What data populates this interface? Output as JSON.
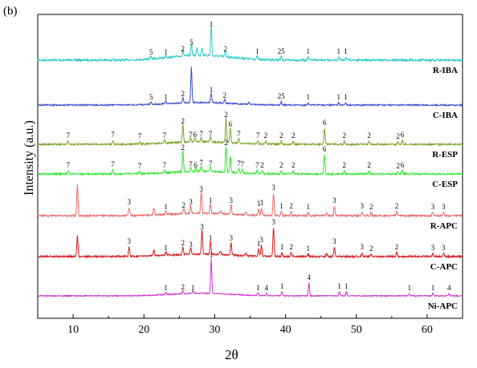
{
  "chart_data": {
    "type": "line",
    "panel_label": "(b)",
    "xlabel": "2θ",
    "ylabel": "Intensity (a.u.)",
    "xlim": [
      5,
      65
    ],
    "xticks": [
      10,
      20,
      30,
      40,
      50,
      60
    ],
    "series": [
      {
        "name": "R-IBA",
        "color": "#2ec9c9",
        "baseline": 75,
        "noise": 1.8,
        "peaks": [
          [
            21,
            3,
            "5"
          ],
          [
            23.1,
            3,
            "1"
          ],
          [
            25.5,
            7,
            "2"
          ],
          [
            26.7,
            15,
            "5"
          ],
          [
            27.5,
            9,
            ""
          ],
          [
            28.2,
            9,
            ""
          ],
          [
            29.5,
            38,
            "1"
          ],
          [
            31.5,
            7,
            "2"
          ],
          [
            36,
            4,
            "1"
          ],
          [
            39.4,
            4,
            "25"
          ],
          [
            43.2,
            4,
            "1"
          ],
          [
            47.5,
            4,
            "1"
          ],
          [
            48.5,
            4,
            "1"
          ]
        ]
      },
      {
        "name": "C-IBA",
        "color": "#3b4fcf",
        "baseline": 131,
        "noise": 1.2,
        "peaks": [
          [
            21,
            3,
            "5"
          ],
          [
            23.1,
            3,
            "1"
          ],
          [
            25.5,
            7,
            "2"
          ],
          [
            26.7,
            44,
            ""
          ],
          [
            29.5,
            12,
            "1"
          ],
          [
            31.4,
            5,
            "2"
          ],
          [
            34.8,
            3,
            ""
          ],
          [
            39.4,
            4,
            "25"
          ],
          [
            43.2,
            3,
            "1"
          ],
          [
            47.5,
            3,
            "1"
          ],
          [
            48.5,
            3,
            "1"
          ]
        ]
      },
      {
        "name": "R-ESP",
        "color": "#7aa32c",
        "baseline": 180,
        "noise": 1.4,
        "peaks": [
          [
            9.3,
            4,
            "7"
          ],
          [
            15.6,
            5,
            "7"
          ],
          [
            19.4,
            3,
            "7"
          ],
          [
            22.9,
            4,
            "7"
          ],
          [
            25.5,
            22,
            "2"
          ],
          [
            26.6,
            5,
            "7"
          ],
          [
            27.2,
            5,
            "6"
          ],
          [
            28.1,
            6,
            "7"
          ],
          [
            29.4,
            6,
            "7"
          ],
          [
            31.6,
            30,
            "2"
          ],
          [
            32.2,
            18,
            "6"
          ],
          [
            33.4,
            6,
            "7"
          ],
          [
            36.1,
            4,
            "7"
          ],
          [
            37.2,
            4,
            "2"
          ],
          [
            39.4,
            4,
            "2"
          ],
          [
            41.1,
            4,
            "2"
          ],
          [
            45.5,
            20,
            "6"
          ],
          [
            48.3,
            4,
            "2"
          ],
          [
            51.8,
            4,
            "2"
          ],
          [
            55.9,
            3,
            "2"
          ],
          [
            56.5,
            5,
            "6"
          ]
        ]
      },
      {
        "name": "C-ESP",
        "color": "#2ee82e",
        "baseline": 217,
        "noise": 1.4,
        "peaks": [
          [
            9.3,
            4,
            "7"
          ],
          [
            15.6,
            5,
            "7"
          ],
          [
            19.4,
            3,
            "7"
          ],
          [
            22.9,
            4,
            "7"
          ],
          [
            25.5,
            26,
            "2"
          ],
          [
            26.6,
            5,
            "7"
          ],
          [
            27.3,
            4,
            "6"
          ],
          [
            28.1,
            7,
            "7"
          ],
          [
            29.4,
            6,
            "7"
          ],
          [
            31.6,
            32,
            "2"
          ],
          [
            32.2,
            20,
            ""
          ],
          [
            33.4,
            6,
            "7"
          ],
          [
            33.9,
            5,
            "7"
          ],
          [
            36,
            4,
            "7"
          ],
          [
            36.7,
            4,
            "2"
          ],
          [
            39.4,
            4,
            "2"
          ],
          [
            41.1,
            4,
            "2"
          ],
          [
            45.5,
            24,
            "6"
          ],
          [
            48.3,
            4,
            "2"
          ],
          [
            51.8,
            4,
            "2"
          ],
          [
            55.9,
            3,
            "2"
          ],
          [
            56.5,
            4,
            "6"
          ]
        ]
      },
      {
        "name": "R-APC",
        "color": "#e86a6a",
        "baseline": 269,
        "noise": 1.6,
        "peaks": [
          [
            10.6,
            38,
            ""
          ],
          [
            17.9,
            10,
            "3"
          ],
          [
            21.4,
            9,
            ""
          ],
          [
            23.1,
            4,
            "1"
          ],
          [
            25.6,
            6,
            "2"
          ],
          [
            26.6,
            10,
            "3"
          ],
          [
            28.1,
            26,
            "3"
          ],
          [
            29.4,
            12,
            "1"
          ],
          [
            30.8,
            4,
            ""
          ],
          [
            32.3,
            12,
            "3"
          ],
          [
            34.4,
            4,
            ""
          ],
          [
            36.2,
            8,
            "1"
          ],
          [
            36.6,
            9,
            "3"
          ],
          [
            38.3,
            28,
            "3"
          ],
          [
            39.4,
            5,
            "1"
          ],
          [
            40.8,
            5,
            "2"
          ],
          [
            43.2,
            4,
            "1"
          ],
          [
            45.8,
            4,
            ""
          ],
          [
            46.9,
            12,
            "3"
          ],
          [
            50.8,
            5,
            "3"
          ],
          [
            52.1,
            4,
            "2"
          ],
          [
            55.7,
            5,
            "2"
          ],
          [
            60.8,
            4,
            "3"
          ],
          [
            62.3,
            4,
            "3"
          ]
        ]
      },
      {
        "name": "C-APC",
        "color": "#d51d1d",
        "baseline": 320,
        "noise": 1.6,
        "peaks": [
          [
            10.6,
            26,
            ""
          ],
          [
            17.9,
            12,
            "3"
          ],
          [
            21.4,
            8,
            ""
          ],
          [
            23.1,
            4,
            "1"
          ],
          [
            25.5,
            10,
            "2"
          ],
          [
            26.6,
            8,
            "3"
          ],
          [
            28.2,
            30,
            "3"
          ],
          [
            29.4,
            16,
            "1"
          ],
          [
            30.8,
            4,
            ""
          ],
          [
            32.3,
            16,
            "3"
          ],
          [
            34.4,
            4,
            ""
          ],
          [
            36.2,
            9,
            "1"
          ],
          [
            36.6,
            14,
            "3"
          ],
          [
            38.3,
            36,
            "3"
          ],
          [
            39.5,
            5,
            "1"
          ],
          [
            40.8,
            5,
            "2"
          ],
          [
            43.2,
            3,
            "1"
          ],
          [
            45.8,
            4,
            ""
          ],
          [
            46.9,
            12,
            "3"
          ],
          [
            50.8,
            5,
            "3"
          ],
          [
            52.1,
            3,
            "2"
          ],
          [
            55.7,
            5,
            "2"
          ],
          [
            60.8,
            4,
            "3"
          ],
          [
            62.3,
            4,
            "3"
          ]
        ]
      },
      {
        "name": "Ni-APC",
        "color": "#d22fd2",
        "baseline": 369,
        "noise": 0.9,
        "peaks": [
          [
            23.1,
            3,
            "1"
          ],
          [
            25.5,
            4,
            "2"
          ],
          [
            26.9,
            3,
            "1"
          ],
          [
            29.5,
            44,
            "1"
          ],
          [
            36.1,
            3,
            "1"
          ],
          [
            37.3,
            3,
            "4"
          ],
          [
            39.5,
            5,
            "1"
          ],
          [
            43.3,
            16,
            "4"
          ],
          [
            47.6,
            5,
            "1"
          ],
          [
            48.6,
            5,
            "1"
          ],
          [
            57.5,
            3,
            "1"
          ],
          [
            60.8,
            3,
            "1"
          ],
          [
            63.1,
            3,
            "4"
          ]
        ]
      }
    ]
  }
}
